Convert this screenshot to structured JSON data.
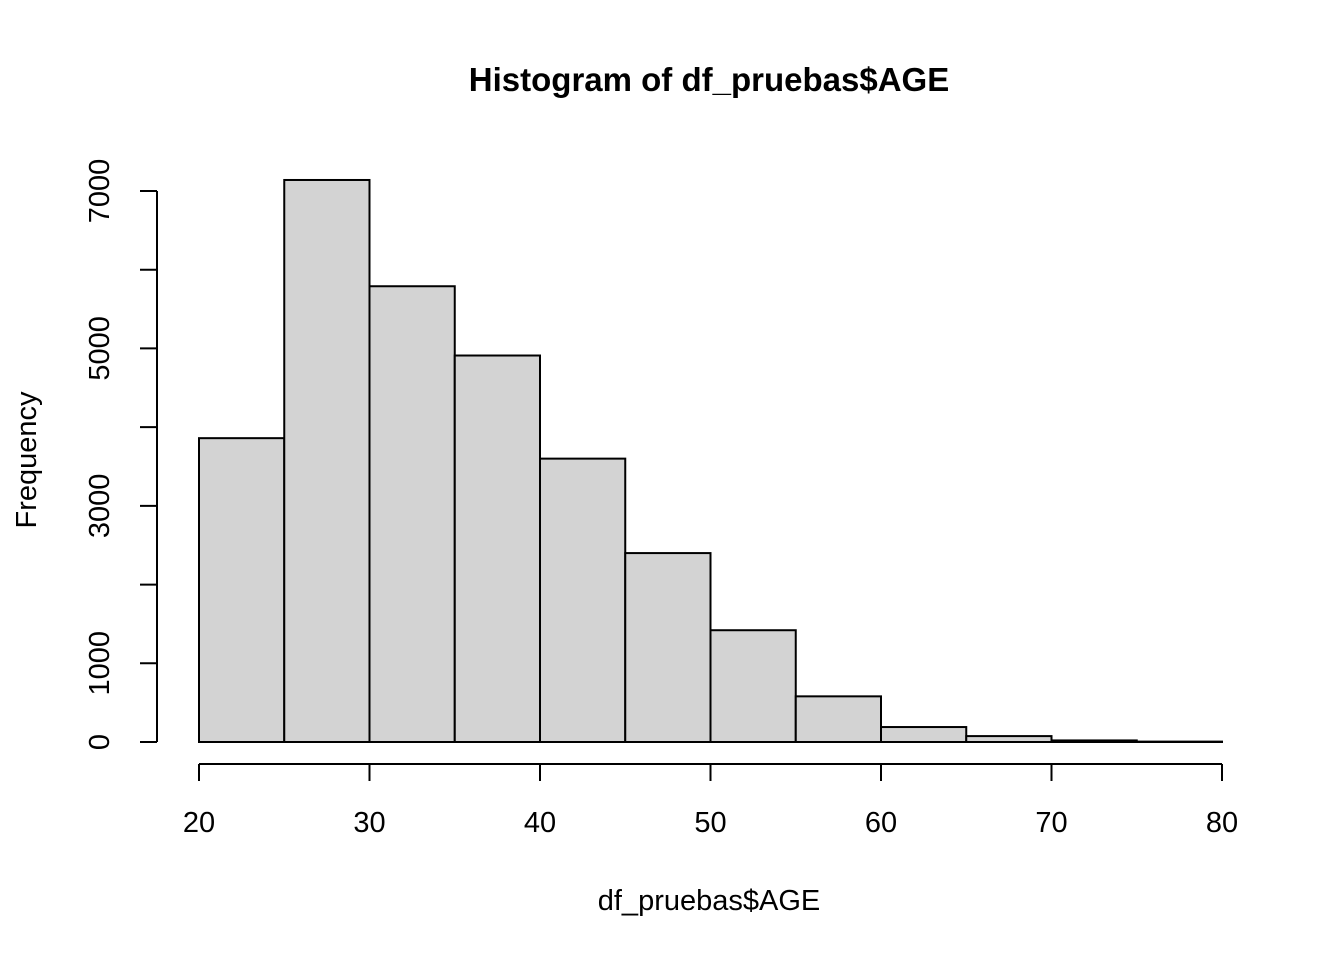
{
  "chart_data": {
    "type": "bar",
    "title": "Histogram of df_pruebas$AGE",
    "xlabel": "df_pruebas$AGE",
    "ylabel": "Frequency",
    "bins": [
      {
        "from": 20,
        "to": 25,
        "count": 3860
      },
      {
        "from": 25,
        "to": 30,
        "count": 7140
      },
      {
        "from": 30,
        "to": 35,
        "count": 5790
      },
      {
        "from": 35,
        "to": 40,
        "count": 4910
      },
      {
        "from": 40,
        "to": 45,
        "count": 3600
      },
      {
        "from": 45,
        "to": 50,
        "count": 2400
      },
      {
        "from": 50,
        "to": 55,
        "count": 1420
      },
      {
        "from": 55,
        "to": 60,
        "count": 580
      },
      {
        "from": 60,
        "to": 65,
        "count": 190
      },
      {
        "from": 65,
        "to": 70,
        "count": 75
      },
      {
        "from": 70,
        "to": 75,
        "count": 20
      },
      {
        "from": 75,
        "to": 80,
        "count": 5
      }
    ],
    "xlim": [
      20,
      80
    ],
    "ylim": [
      0,
      7140
    ],
    "x_ticks": [
      20,
      30,
      40,
      50,
      60,
      70,
      80
    ],
    "y_ticks": [
      0,
      1000,
      2000,
      3000,
      4000,
      5000,
      6000,
      7000
    ],
    "y_tick_labels": [
      "0",
      "",
      "",
      "3000",
      "",
      "5000",
      "",
      "7000"
    ],
    "y_tick_labels_full": [
      "0",
      "1000",
      "",
      "3000",
      "",
      "5000",
      "",
      "7000"
    ],
    "bar_fill": "#d3d3d3",
    "bar_stroke": "#000000",
    "grid": false,
    "legend": "none"
  }
}
